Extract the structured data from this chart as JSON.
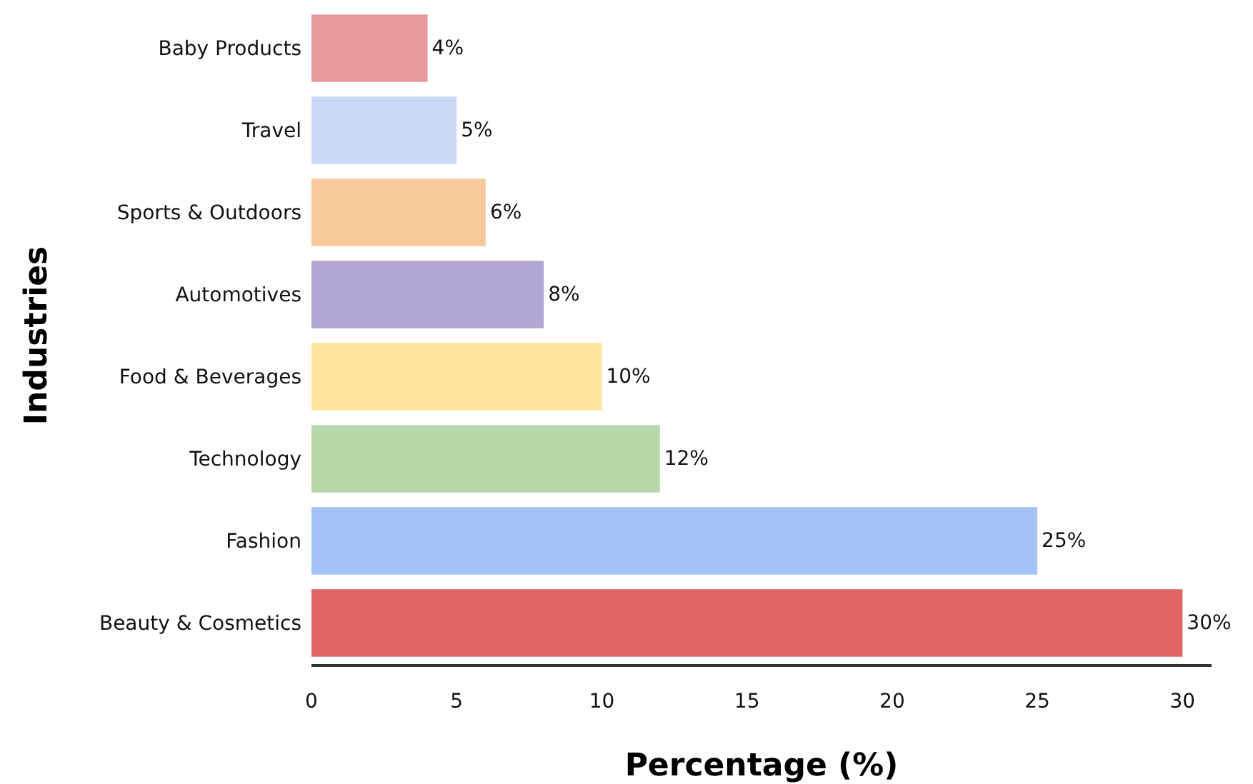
{
  "chart_data": {
    "type": "bar",
    "orientation": "horizontal",
    "xlabel": "Percentage (%)",
    "ylabel": "Industries",
    "categories": [
      "Baby Products",
      "Travel",
      "Sports & Outdoors",
      "Automotives",
      "Food & Beverages",
      "Technology",
      "Fashion",
      "Beauty & Cosmetics"
    ],
    "values": [
      4,
      5,
      6,
      8,
      10,
      12,
      25,
      30
    ],
    "value_labels": [
      "4%",
      "5%",
      "6%",
      "8%",
      "10%",
      "12%",
      "25%",
      "30%"
    ],
    "colors": [
      "#e89a9a",
      "#c9d9f5",
      "#f7c99c",
      "#b3a6d4",
      "#fde59b",
      "#b6d7a8",
      "#a4c2f4",
      "#e06666"
    ],
    "xlim": [
      0,
      31
    ],
    "xticks": [
      0,
      5,
      10,
      15,
      20,
      25,
      30
    ],
    "grid": false,
    "legend": false
  }
}
